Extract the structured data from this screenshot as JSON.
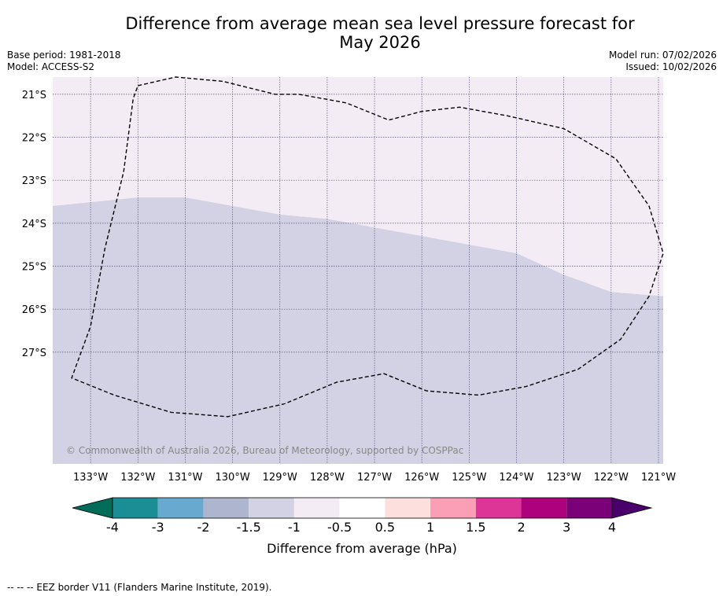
{
  "title_line1": "Difference from average mean sea level pressure forecast for",
  "title_line2": "May 2026",
  "base_period": "Base period: 1981-2018",
  "model": "Model: ACCESS-S2",
  "model_run": "Model run: 07/02/2026",
  "issued": "Issued: 10/02/2026",
  "copyright": "© Commonwealth of Australia 2026, Bureau of Meteorology, supported by COSPPac",
  "footer_note": "--  --  -- EEZ border V11 (Flanders Marine Institute, 2019).",
  "chart_data": {
    "type": "heatmap",
    "title": "Difference from average mean sea level pressure forecast for May 2026",
    "lon_range": [
      -133.8,
      -120.9
    ],
    "lat_range": [
      -29.6,
      -20.6
    ],
    "x_ticks": [
      "133°W",
      "132°W",
      "131°W",
      "130°W",
      "129°W",
      "128°W",
      "127°W",
      "126°W",
      "125°W",
      "124°W",
      "123°W",
      "122°W",
      "121°W"
    ],
    "y_ticks": [
      "21°S",
      "22°S",
      "23°S",
      "24°S",
      "25°S",
      "26°S",
      "27°S"
    ],
    "regions": [
      {
        "name": "north",
        "range": "-1 to -0.5",
        "color": "#f4ecf5"
      },
      {
        "name": "south",
        "range": "-1.5 to -1",
        "color": "#d2d2e4"
      }
    ],
    "boundary_lon": [
      -133.8,
      -132.0,
      -131.0,
      -130.0,
      -129.0,
      -128.0,
      -127.0,
      -126.0,
      -125.0,
      -124.0,
      -123.0,
      -122.0,
      -120.9
    ],
    "boundary_lat": [
      -23.6,
      -23.4,
      -23.4,
      -23.6,
      -23.8,
      -23.9,
      -24.1,
      -24.3,
      -24.5,
      -24.7,
      -25.2,
      -25.6,
      -25.7
    ],
    "colorbar": {
      "label": "Difference from average (hPa)",
      "ticks": [
        "-4",
        "-3",
        "-2",
        "-1.5",
        "-1",
        "-0.5",
        "0.5",
        "1",
        "1.5",
        "2",
        "3",
        "4"
      ],
      "colors": [
        "#1b8e95",
        "#68a9cf",
        "#adb5cf",
        "#d2d2e4",
        "#f4ecf5",
        "#ffffff",
        "#fde0dd",
        "#fa9fb5",
        "#dd3497",
        "#ae017e",
        "#7a0177"
      ],
      "under_color": "#016c59",
      "over_color": "#49006a"
    },
    "eez_border": {
      "lon": [
        -132.0,
        -131.2,
        -130.2,
        -129.1,
        -128.6,
        -127.6,
        -126.7,
        -126.0,
        -125.2,
        -124.2,
        -123.0,
        -121.9,
        -121.2,
        -120.9,
        -121.2,
        -121.8,
        -122.7,
        -123.8,
        -124.8,
        -125.9,
        -126.8,
        -127.8,
        -128.9,
        -130.1,
        -131.3,
        -132.5,
        -133.4,
        -133.0,
        -132.7,
        -132.3,
        -132.1
      ],
      "lat": [
        -20.8,
        -20.6,
        -20.7,
        -21.0,
        -21.0,
        -21.2,
        -21.6,
        -21.4,
        -21.3,
        -21.5,
        -21.8,
        -22.5,
        -23.6,
        -24.7,
        -25.7,
        -26.7,
        -27.4,
        -27.8,
        -28.0,
        -27.9,
        -27.5,
        -27.7,
        -28.2,
        -28.5,
        -28.4,
        -28.0,
        -27.6,
        -26.4,
        -24.6,
        -22.8,
        -21.1
      ]
    }
  }
}
